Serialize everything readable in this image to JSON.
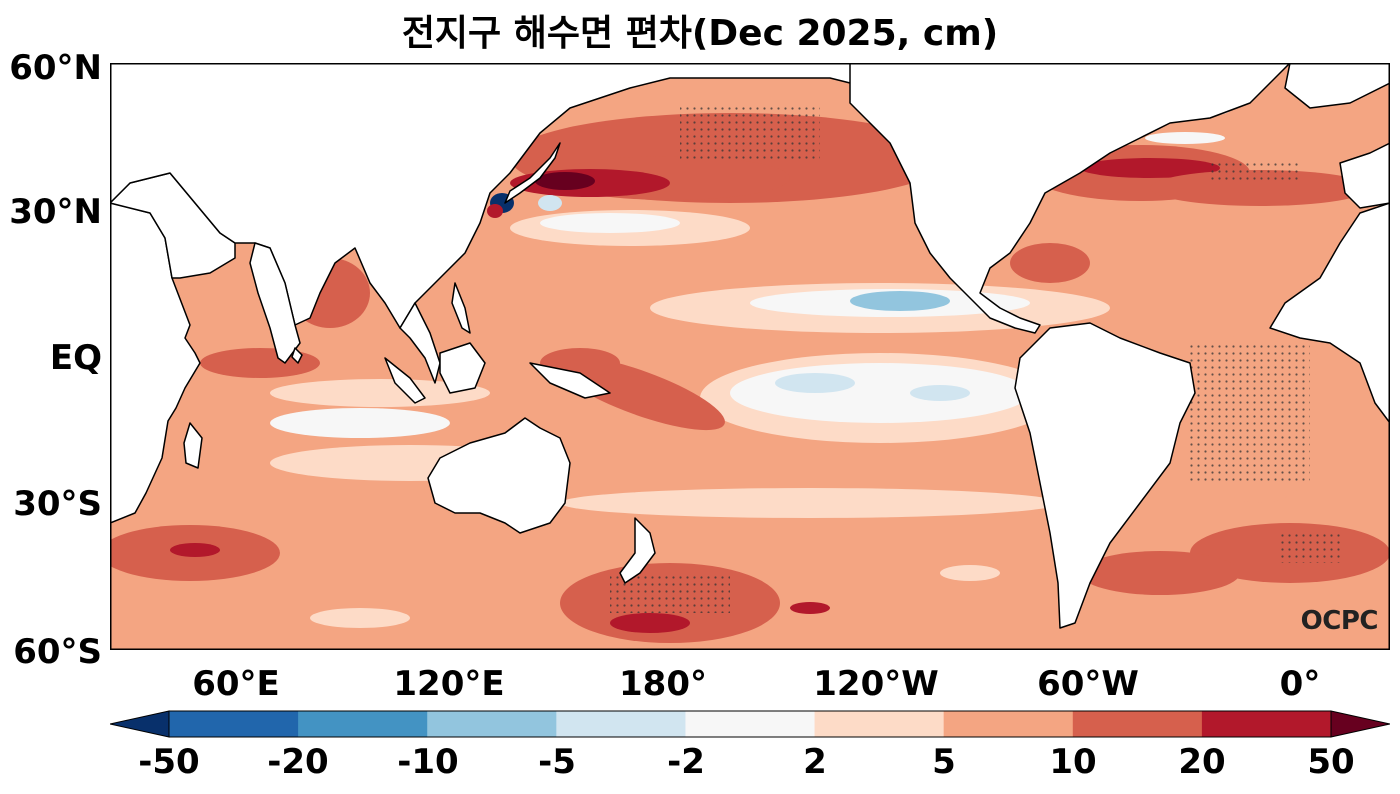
{
  "title": "전지구 해수면 편차(Dec 2025, cm)",
  "lat_labels": [
    "60°N",
    "30°N",
    "EQ",
    "30°S",
    "60°S"
  ],
  "lon_labels": [
    "60°E",
    "120°E",
    "180°",
    "120°W",
    "60°W",
    "0°"
  ],
  "colorbar": {
    "ticks": [
      "-50",
      "-20",
      "-10",
      "-5",
      "-2",
      "2",
      "5",
      "10",
      "20",
      "50"
    ],
    "colors": [
      "#08306b",
      "#2166ac",
      "#4393c3",
      "#92c5de",
      "#d1e5f0",
      "#f7f7f7",
      "#fddbc7",
      "#f4a582",
      "#d6604d",
      "#b2182b",
      "#67001f"
    ]
  },
  "watermark": "OCPC",
  "map": {
    "colors": {
      "land": "#ffffff",
      "coast": "#000000",
      "ocean_base": "#f4a582"
    }
  }
}
